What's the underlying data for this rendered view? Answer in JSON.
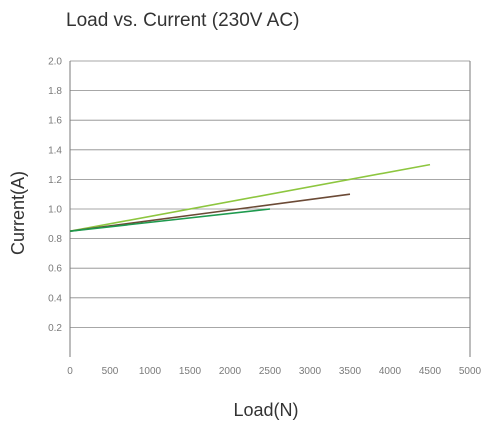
{
  "chart_data": {
    "type": "line",
    "title": "Load vs. Current (230V AC)",
    "xlabel": "Load(N)",
    "ylabel": "Current(A)",
    "xlim": [
      0,
      5000
    ],
    "ylim": [
      0,
      2.0
    ],
    "x_ticks": [
      "0",
      "500",
      "1000",
      "1500",
      "2000",
      "2500",
      "3000",
      "3500",
      "4000",
      "4500",
      "5000"
    ],
    "y_ticks": [
      "0.2",
      "0.4",
      "0.6",
      "0.8",
      "1.0",
      "1.2",
      "1.4",
      "1.6",
      "1.8",
      "2.0"
    ],
    "grid": "horizontal",
    "legend": "none",
    "series": [
      {
        "color": "#8dc63f",
        "x": [
          0,
          4500
        ],
        "y": [
          0.85,
          1.3
        ]
      },
      {
        "color": "#6b4a36",
        "x": [
          0,
          3500
        ],
        "y": [
          0.85,
          1.1
        ]
      },
      {
        "color": "#1e9a4e",
        "x": [
          0,
          2500
        ],
        "y": [
          0.85,
          1.0
        ]
      }
    ]
  },
  "colors": {
    "grid": "#8a8a8a",
    "axis": "#7a7a7a",
    "text": "#333333",
    "ticks": "#7a7a7a"
  }
}
